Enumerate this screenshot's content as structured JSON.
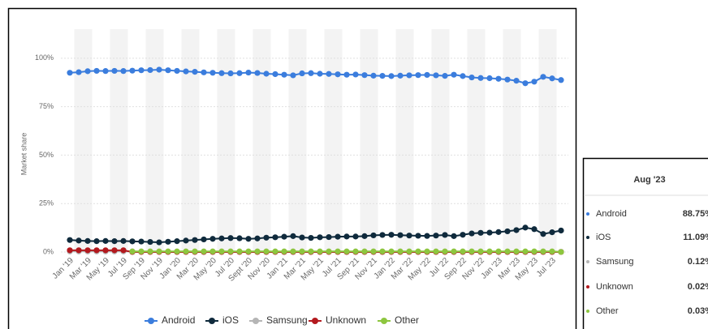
{
  "chart_data": {
    "type": "line",
    "y_label": "Market share",
    "categories": [
      "Jan '19",
      null,
      "Mar '19",
      null,
      "May '19",
      null,
      "Jul '19",
      null,
      "Sep '19",
      null,
      "Nov '19",
      null,
      "Jan '20",
      null,
      "Mar '20",
      null,
      "May '20",
      null,
      "Jul '20",
      null,
      "Sept '20",
      null,
      "Nov '20",
      null,
      "Jan '21",
      null,
      "Mar '21",
      null,
      "May '21",
      null,
      "Jul '21",
      null,
      "Sep '21",
      null,
      "Nov '21",
      null,
      "Jan '22",
      null,
      "Mar '22",
      null,
      "May '22",
      null,
      "Jul '22",
      null,
      "Sep '22",
      null,
      "Nov '22",
      null,
      "Jan '23",
      null,
      "Mar '23",
      null,
      "May '23",
      null,
      "Jul '23",
      null
    ],
    "ylim": [
      0,
      115
    ],
    "yticks": [
      {
        "value": 0,
        "label": "0%"
      },
      {
        "value": 25,
        "label": "25%"
      },
      {
        "value": 50,
        "label": "50%"
      },
      {
        "value": 75,
        "label": "75%"
      },
      {
        "value": 100,
        "label": "100%"
      }
    ],
    "grid": true,
    "legend": "bottom",
    "series": [
      {
        "name": "Android",
        "color": "#3b7ddd",
        "values": [
          92.5,
          92.8,
          93.3,
          93.5,
          93.4,
          93.5,
          93.4,
          93.6,
          93.8,
          93.9,
          94.1,
          93.8,
          93.5,
          93.2,
          93.0,
          92.7,
          92.5,
          92.3,
          92.2,
          92.3,
          92.6,
          92.4,
          92.0,
          91.8,
          91.5,
          91.2,
          92.2,
          92.3,
          92.0,
          91.9,
          91.7,
          91.5,
          91.6,
          91.3,
          91.0,
          90.9,
          90.8,
          91.0,
          91.2,
          91.3,
          91.4,
          91.2,
          90.9,
          91.5,
          90.8,
          90.1,
          89.8,
          89.7,
          89.4,
          89.0,
          88.4,
          87.1,
          87.9,
          90.4,
          89.6,
          88.75
        ]
      },
      {
        "name": "iOS",
        "color": "#0f2a3c",
        "values": [
          6.2,
          5.9,
          5.7,
          5.6,
          5.7,
          5.6,
          5.7,
          5.5,
          5.4,
          5.2,
          5.0,
          5.3,
          5.6,
          5.9,
          6.2,
          6.5,
          6.8,
          7.0,
          7.2,
          7.1,
          6.8,
          7.0,
          7.4,
          7.6,
          7.9,
          8.2,
          7.5,
          7.3,
          7.6,
          7.7,
          7.9,
          8.0,
          8.0,
          8.2,
          8.6,
          8.8,
          8.9,
          8.7,
          8.5,
          8.4,
          8.3,
          8.5,
          8.8,
          8.2,
          8.9,
          9.6,
          9.9,
          10.0,
          10.3,
          10.7,
          11.3,
          12.6,
          11.8,
          9.3,
          10.2,
          11.09
        ]
      },
      {
        "name": "Samsung",
        "color": "#b5b5b5",
        "values": [
          0.3,
          0.3,
          0.3,
          0.3,
          0.3,
          0.3,
          0.3,
          0.3,
          0.2,
          0.2,
          0.2,
          0.2,
          0.2,
          0.2,
          0.2,
          0.2,
          0.2,
          0.2,
          0.2,
          0.2,
          0.2,
          0.2,
          0.2,
          0.2,
          0.2,
          0.2,
          0.2,
          0.2,
          0.2,
          0.2,
          0.2,
          0.2,
          0.2,
          0.2,
          0.2,
          0.2,
          0.2,
          0.2,
          0.2,
          0.2,
          0.2,
          0.2,
          0.2,
          0.2,
          0.2,
          0.2,
          0.2,
          0.2,
          0.2,
          0.2,
          0.2,
          0.2,
          0.2,
          0.2,
          0.2,
          0.12
        ]
      },
      {
        "name": "Unknown",
        "color": "#b3191e",
        "values": [
          0.9,
          0.9,
          0.9,
          0.9,
          0.9,
          0.9,
          0.9,
          0.02,
          0.02,
          0.02,
          0.02,
          0.02,
          0.02,
          0.02,
          0.02,
          0.02,
          0.02,
          0.02,
          0.02,
          0.02,
          0.02,
          0.02,
          0.02,
          0.02,
          0.02,
          0.02,
          0.02,
          0.02,
          0.02,
          0.02,
          0.02,
          0.02,
          0.02,
          0.02,
          0.02,
          0.02,
          0.02,
          0.02,
          0.02,
          0.02,
          0.02,
          0.02,
          0.02,
          0.02,
          0.02,
          0.02,
          0.02,
          0.02,
          0.02,
          0.02,
          0.02,
          0.02,
          0.02,
          0.02,
          0.02,
          0.02
        ]
      },
      {
        "name": "Other",
        "color": "#8dc63f",
        "values": [
          null,
          null,
          null,
          null,
          null,
          null,
          null,
          0.3,
          0.3,
          0.3,
          0.3,
          0.3,
          0.3,
          0.3,
          0.3,
          0.3,
          0.3,
          0.3,
          0.3,
          0.3,
          0.3,
          0.3,
          0.3,
          0.3,
          0.3,
          0.3,
          0.3,
          0.3,
          0.3,
          0.3,
          0.3,
          0.3,
          0.3,
          0.3,
          0.3,
          0.3,
          0.3,
          0.3,
          0.3,
          0.3,
          0.3,
          0.3,
          0.3,
          0.3,
          0.3,
          0.3,
          0.3,
          0.3,
          0.3,
          0.3,
          0.3,
          0.3,
          0.3,
          0.3,
          0.3,
          0.03
        ]
      }
    ],
    "tooltip": {
      "title": "Aug '23",
      "values": [
        88.75,
        11.09,
        0.12,
        0.02,
        0.03
      ],
      "value_labels": [
        "88.75%",
        "11.09%",
        "0.12%",
        "0.02%",
        "0.03%"
      ]
    }
  }
}
